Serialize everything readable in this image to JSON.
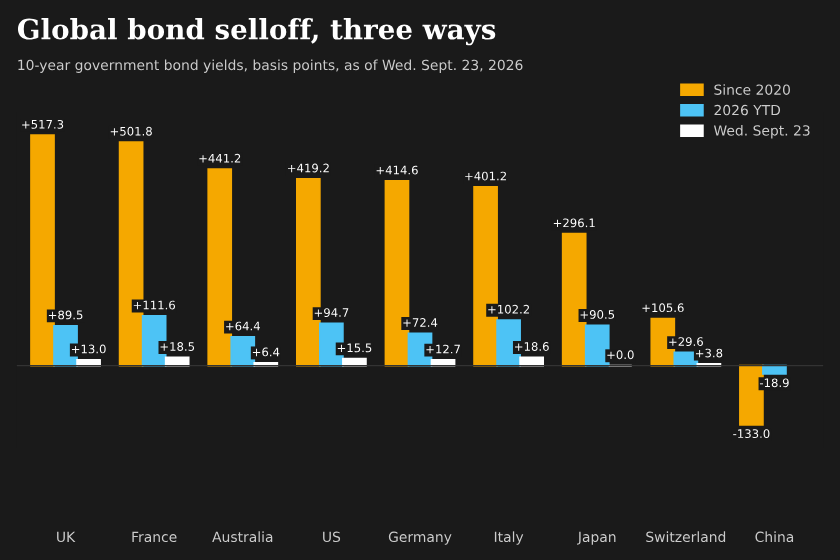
{
  "chart_data": {
    "type": "bar",
    "title": "Global bond selloff, three ways",
    "subtitle": "10-year government bond yields, basis points, as of Wed. Sept. 23, 2026",
    "categories": [
      "UK",
      "France",
      "Australia",
      "US",
      "Germany",
      "Italy",
      "Japan",
      "Switzerland",
      "China"
    ],
    "series": [
      {
        "name": "Since 2020",
        "color": "#f5a800",
        "values": [
          517.3,
          501.8,
          441.2,
          419.2,
          414.6,
          401.2,
          296.1,
          105.6,
          -133.0
        ],
        "value_labels": [
          "+517.3",
          "+501.8",
          "+441.2",
          "+419.2",
          "+414.6",
          "+401.2",
          "+296.1",
          "+105.6",
          "-133.0"
        ]
      },
      {
        "name": "2026 YTD",
        "color": "#4dc3f5",
        "values": [
          89.5,
          111.6,
          64.4,
          94.7,
          72.4,
          102.2,
          90.5,
          29.6,
          -18.9
        ],
        "value_labels": [
          "+89.5",
          "+111.6",
          "+64.4",
          "+94.7",
          "+72.4",
          "+102.2",
          "+90.5",
          "+29.6",
          "-18.9"
        ]
      },
      {
        "name": "Wed. Sept. 23",
        "color": "#ffffff",
        "values": [
          13.0,
          18.5,
          6.4,
          15.5,
          12.7,
          18.6,
          0.0,
          3.8,
          null
        ],
        "value_labels": [
          "+13.0",
          "+18.5",
          "+6.4",
          "+15.5",
          "+12.7",
          "+18.6",
          "+0.0",
          "+3.8",
          null
        ]
      }
    ],
    "legend": "top right",
    "grid": false
  }
}
